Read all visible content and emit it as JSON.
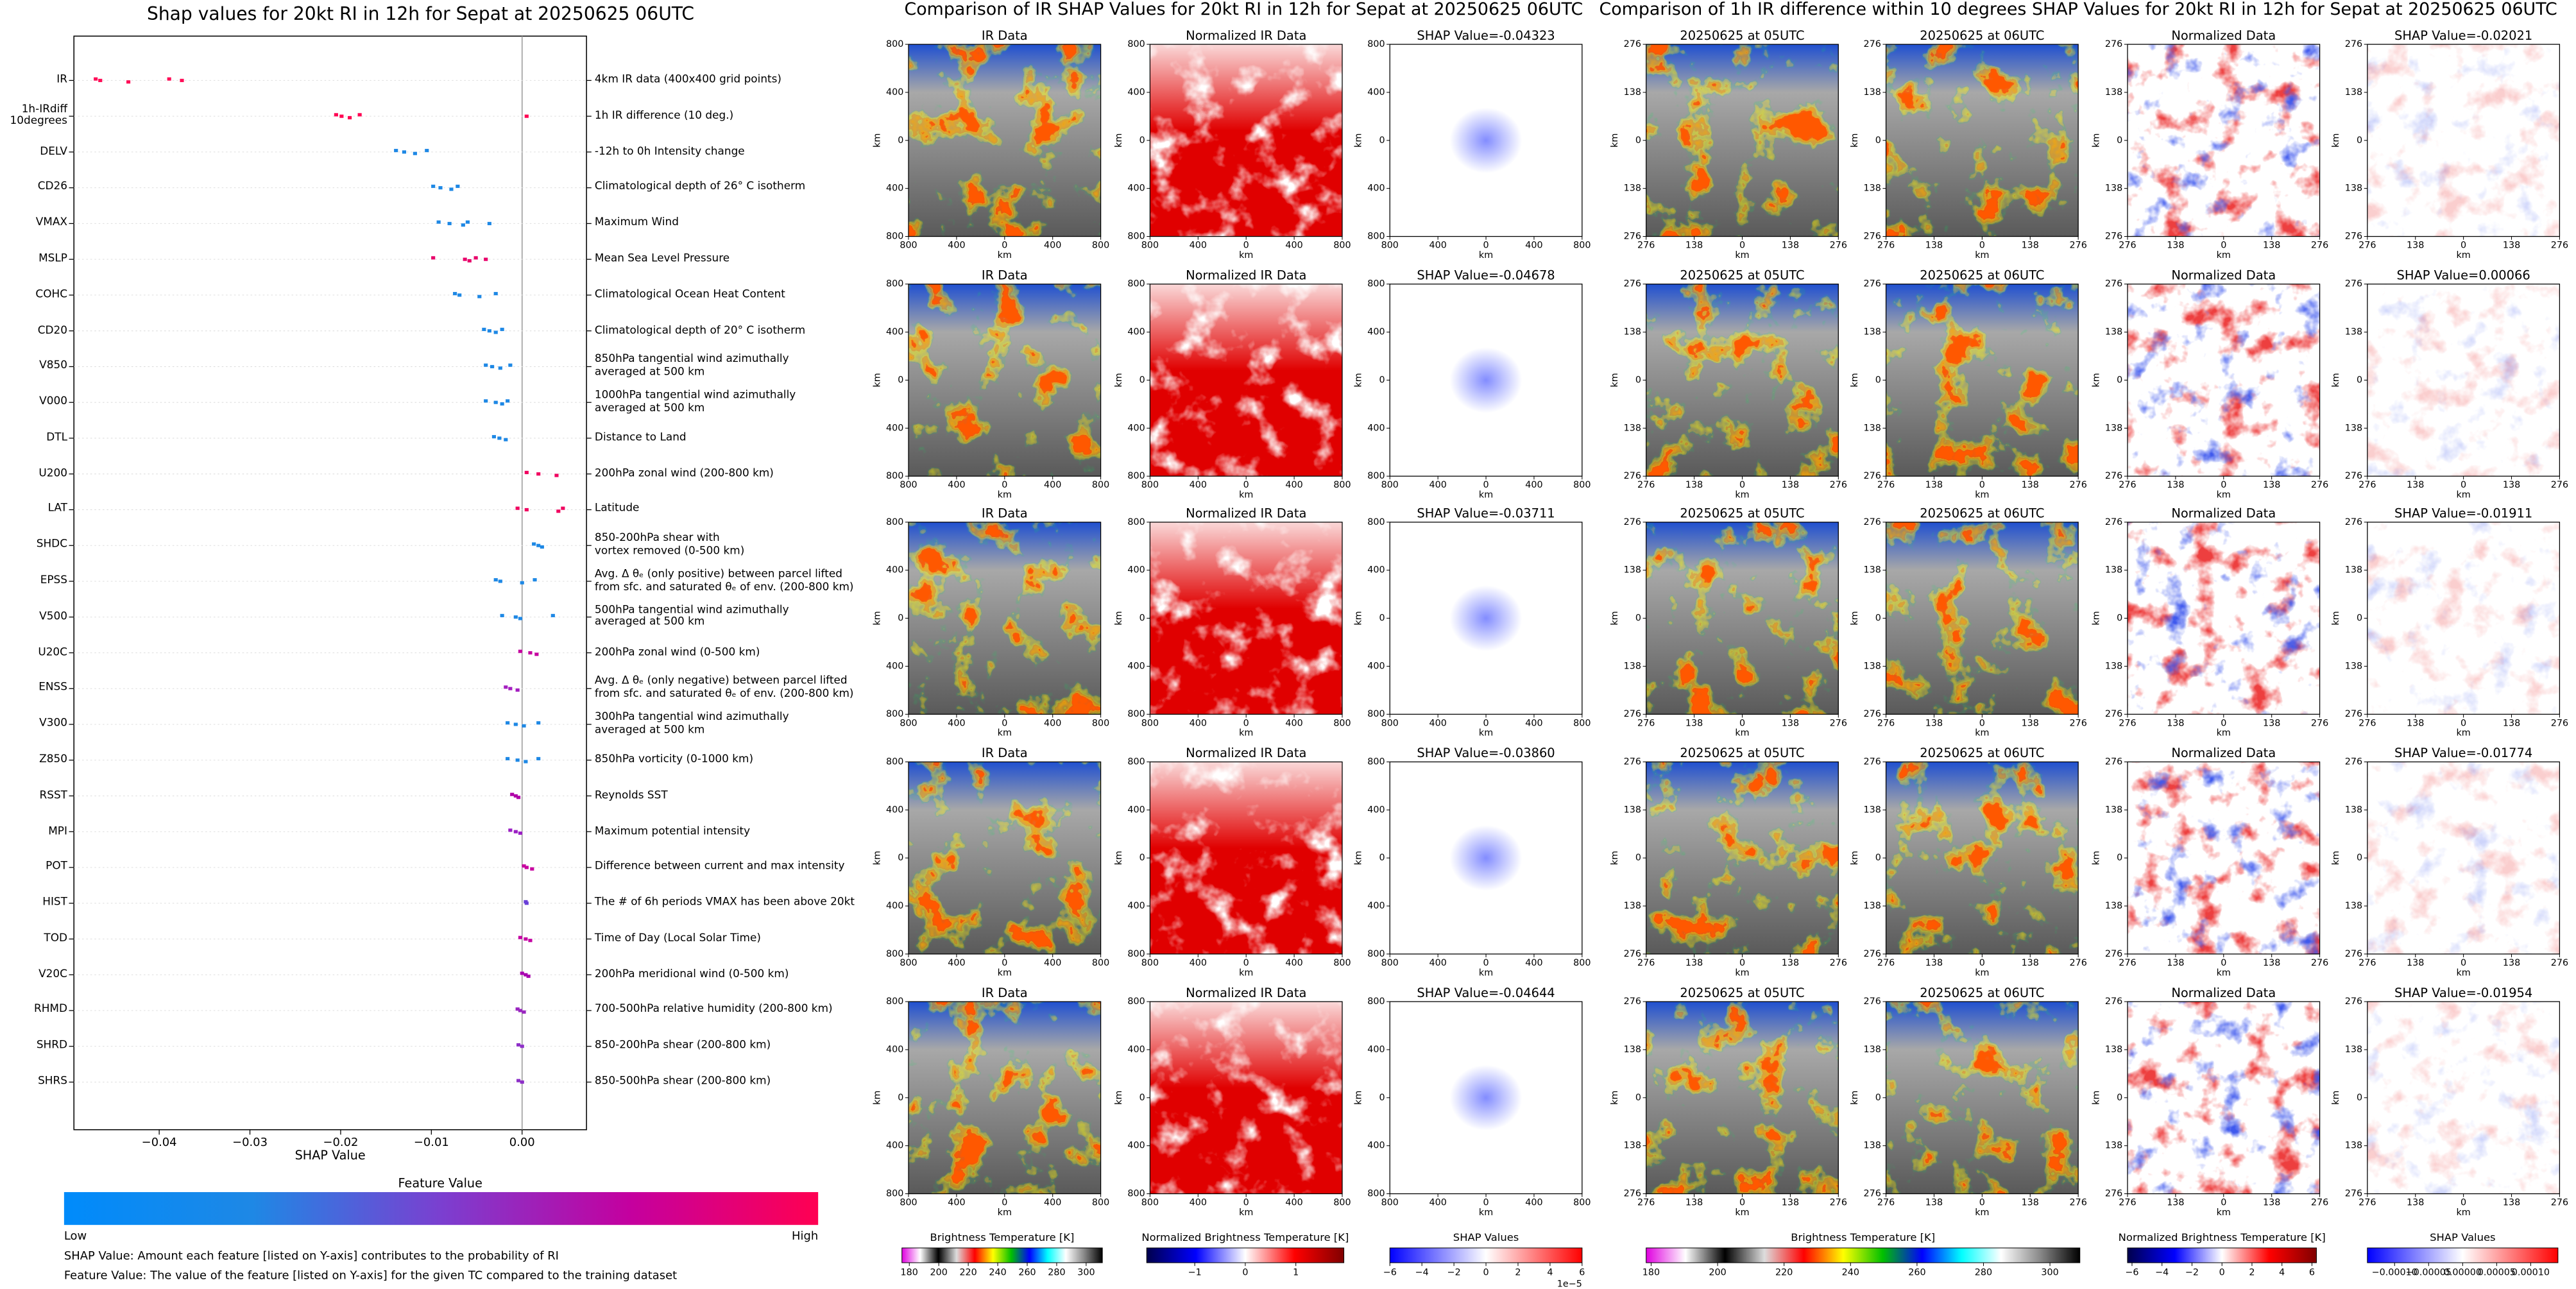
{
  "chart_data": {
    "type": "beeswarm",
    "title": "Shap values for 20kt RI in 12h for Sepat at 20250625 06UTC",
    "xlabel": "SHAP Value",
    "xlim": [
      -0.0494,
      0.0071
    ],
    "xticks": [
      {
        "value": -0.04,
        "label": "−0.04"
      },
      {
        "value": -0.03,
        "label": "−0.03"
      },
      {
        "value": -0.02,
        "label": "−0.02"
      },
      {
        "value": -0.01,
        "label": "−0.01"
      },
      {
        "value": 0,
        "label": "0.00"
      }
    ],
    "series": [
      {
        "name": "IR",
        "color": "#ff0d57",
        "values": [
          -0.047,
          -0.0465,
          -0.0434,
          -0.0389,
          -0.0375
        ]
      },
      {
        "name": "1h-IRdiff\n10degrees",
        "color": "#ff0052",
        "values": [
          -0.0205,
          -0.0199,
          -0.019,
          -0.0179,
          0.0005
        ]
      },
      {
        "name": "DELV",
        "color": "#1e88e5",
        "values": [
          -0.0139,
          -0.013,
          -0.0118,
          -0.0105
        ]
      },
      {
        "name": "CD26",
        "color": "#1e88e5",
        "values": [
          -0.0098,
          -0.009,
          -0.0078,
          -0.0071
        ]
      },
      {
        "name": "VMAX",
        "color": "#1e88e5",
        "values": [
          -0.0092,
          -0.008,
          -0.0065,
          -0.006,
          -0.0036
        ]
      },
      {
        "name": "MSLP",
        "color": "#e8006a",
        "values": [
          -0.0098,
          -0.0063,
          -0.0058,
          -0.0051,
          -0.004
        ]
      },
      {
        "name": "COHC",
        "color": "#1e88e5",
        "values": [
          -0.0074,
          -0.0069,
          -0.0047,
          -0.0029
        ]
      },
      {
        "name": "CD20",
        "color": "#1e88e5",
        "values": [
          -0.0042,
          -0.0036,
          -0.0029,
          -0.0022
        ]
      },
      {
        "name": "V850",
        "color": "#1e88e5",
        "values": [
          -0.004,
          -0.0033,
          -0.0024,
          -0.0013
        ]
      },
      {
        "name": "V000",
        "color": "#1e88e5",
        "values": [
          -0.004,
          -0.0029,
          -0.0022,
          -0.0016
        ]
      },
      {
        "name": "DTL",
        "color": "#1e88e5",
        "values": [
          -0.0031,
          -0.0025,
          -0.0018
        ]
      },
      {
        "name": "U200",
        "color": "#f0005f",
        "values": [
          0.0005,
          0.0018,
          0.0038
        ]
      },
      {
        "name": "LAT",
        "color": "#f0005f",
        "values": [
          -0.0005,
          0.0005,
          0.004,
          0.0045
        ]
      },
      {
        "name": "SHDC",
        "color": "#1e88e5",
        "values": [
          0.0013,
          0.0018,
          0.0022
        ]
      },
      {
        "name": "EPSS",
        "color": "#1e88e5",
        "values": [
          -0.0029,
          -0.0024,
          0,
          0.0014
        ]
      },
      {
        "name": "V500",
        "color": "#1e88e5",
        "values": [
          -0.0022,
          -0.0007,
          -0.0002,
          0.0034
        ]
      },
      {
        "name": "U20C",
        "color": "#c6009f",
        "values": [
          -0.0002,
          0.0009,
          0.0016
        ]
      },
      {
        "name": "ENSS",
        "color": "#a41fc0",
        "values": [
          -0.0018,
          -0.0013,
          -0.0005
        ]
      },
      {
        "name": "V300",
        "color": "#1e88e5",
        "values": [
          -0.0016,
          -0.0007,
          0.0002,
          0.0018
        ]
      },
      {
        "name": "Z850",
        "color": "#1e88e5",
        "values": [
          -0.0016,
          -0.0005,
          0.0004,
          0.0018
        ]
      },
      {
        "name": "RSST",
        "color": "#b000a8",
        "values": [
          -0.0011,
          -0.0007,
          -0.0004
        ]
      },
      {
        "name": "MPI",
        "color": "#9b1fc4",
        "values": [
          -0.0013,
          -0.0007,
          -0.0002
        ]
      },
      {
        "name": "POT",
        "color": "#c800a0",
        "values": [
          0.0002,
          0.0005,
          0.0011
        ]
      },
      {
        "name": "HIST",
        "color": "#6a40d8",
        "values": [
          0.0004,
          0.0005
        ]
      },
      {
        "name": "TOD",
        "color": "#c400a2",
        "values": [
          -0.0002,
          0.0004,
          0.0009
        ]
      },
      {
        "name": "V20C",
        "color": "#a800b0",
        "values": [
          0,
          0.0004,
          0.0007
        ]
      },
      {
        "name": "RHMD",
        "color": "#9a26c0",
        "values": [
          -0.0005,
          -0.0002,
          0.0002
        ]
      },
      {
        "name": "SHRD",
        "color": "#8e30c8",
        "values": [
          -0.0004,
          0
        ]
      },
      {
        "name": "SHRS",
        "color": "#8e30c8",
        "values": [
          -0.0004,
          0
        ]
      }
    ],
    "descriptions": [
      "4km IR data (400x400 grid points)",
      "1h IR difference (10 deg.)",
      "-12h to 0h Intensity change",
      "Climatological depth of 26° C isotherm",
      "Maximum Wind",
      "Mean Sea Level Pressure",
      "Climatological Ocean Heat Content",
      "Climatological depth of 20° C isotherm",
      "850hPa tangential wind azimuthally\naveraged at 500 km",
      "1000hPa tangential wind azimuthally\naveraged at 500 km",
      "Distance to Land",
      "200hPa zonal wind (200-800 km)",
      "Latitude",
      "850-200hPa shear with\nvortex removed (0-500 km)",
      "Avg. Δ θₑ (only positive) between parcel lifted\nfrom sfc. and saturated θₑ of env. (200-800 km)",
      "500hPa tangential wind azimuthally\naveraged at 500 km",
      "200hPa zonal wind (0-500 km)",
      "Avg. Δ θₑ (only negative) between parcel lifted\nfrom sfc. and saturated θₑ of env. (200-800 km)",
      "300hPa tangential wind azimuthally\naveraged at 500 km",
      "850hPa vorticity (0-1000 km)",
      "Reynolds SST",
      "Maximum potential intensity",
      "Difference between current and max intensity",
      "The # of 6h periods VMAX has been above 20kt",
      "Time of Day (Local Solar Time)",
      "200hPa meridional wind (0-500 km)",
      "700-500hPa relative humidity (200-800 km)",
      "850-200hPa shear (200-800 km)",
      "850-500hPa shear (200-800 km)"
    ],
    "colorbar": {
      "title": "Feature Value",
      "low": "Low",
      "high": "High",
      "colors": [
        "#008bfb",
        "#1e88e5",
        "#7b3fd0",
        "#c4009f",
        "#ff0052"
      ]
    },
    "notes": [
      "SHAP Value: Amount each feature [listed on Y-axis] contributes to the probability of RI",
      "Feature Value: The value of the feature [listed on Y-axis] for the given TC compared to the training dataset"
    ]
  },
  "ir_comparison": {
    "title": "Comparison of IR SHAP Values for 20kt RI in 12h for Sepat at 20250625 06UTC",
    "panel_titles": [
      [
        "IR Data",
        "Normalized IR Data",
        "SHAP Value=-0.04323"
      ],
      [
        "IR Data",
        "Normalized IR Data",
        "SHAP Value=-0.04678"
      ],
      [
        "IR Data",
        "Normalized IR Data",
        "SHAP Value=-0.03711"
      ],
      [
        "IR Data",
        "Normalized IR Data",
        "SHAP Value=-0.03860"
      ],
      [
        "IR Data",
        "Normalized IR Data",
        "SHAP Value=-0.04644"
      ]
    ],
    "tick_labels": [
      "800",
      "400",
      "0",
      "400",
      "800"
    ],
    "axis_label": "km",
    "colorbars": [
      {
        "label": "Brightness Temperature [K]",
        "range": [
          175,
          311
        ],
        "ticks": [
          180,
          200,
          220,
          240,
          260,
          280,
          300
        ],
        "colors": [
          "#e000e0",
          "#ffffff",
          "#000000",
          "#dddddd",
          "#ff0000",
          "#ffff00",
          "#00c000",
          "#0000ff",
          "#00ffff",
          "#ffffff",
          "#888888",
          "#000000"
        ]
      },
      {
        "label": "Normalized Brightness Temperature [K]",
        "range": [
          -1.95,
          1.95
        ],
        "ticks": [
          {
            "value": -1,
            "label": "−1"
          },
          0,
          1
        ],
        "colors": [
          "#00004c",
          "#0000ff",
          "#ffffff",
          "#ff0000",
          "#800000"
        ]
      },
      {
        "label": "SHAP Values",
        "range": [
          -6,
          6
        ],
        "ticks": [
          {
            "value": -6,
            "label": "−6"
          },
          {
            "value": -4,
            "label": "−4"
          },
          {
            "value": -2,
            "label": "−2"
          },
          0,
          2,
          4,
          6
        ],
        "offset": "1e−5",
        "colors": [
          "#0000ff",
          "#ffffff",
          "#ff0000"
        ]
      }
    ]
  },
  "irdiff_comparison": {
    "title": "Comparison of 1h IR difference within 10 degrees SHAP Values for 20kt RI in 12h for Sepat at 20250625 06UTC",
    "panel_titles": [
      [
        "20250625 at 05UTC",
        "20250625 at 06UTC",
        "Normalized Data",
        "SHAP Value=-0.02021"
      ],
      [
        "20250625 at 05UTC",
        "20250625 at 06UTC",
        "Normalized Data",
        "SHAP Value=0.00066"
      ],
      [
        "20250625 at 05UTC",
        "20250625 at 06UTC",
        "Normalized Data",
        "SHAP Value=-0.01911"
      ],
      [
        "20250625 at 05UTC",
        "20250625 at 06UTC",
        "Normalized Data",
        "SHAP Value=-0.01774"
      ],
      [
        "20250625 at 05UTC",
        "20250625 at 06UTC",
        "Normalized Data",
        "SHAP Value=-0.01954"
      ]
    ],
    "tick_labels": [
      "276",
      "138",
      "0",
      "138",
      "276"
    ],
    "axis_label": "km",
    "colorbars": [
      {
        "label": "Brightness Temperature [K]",
        "range": [
          178.5,
          309
        ],
        "ticks": [
          180,
          200,
          220,
          240,
          260,
          280,
          300
        ],
        "colors": [
          "#e000e0",
          "#ffffff",
          "#000000",
          "#dddddd",
          "#ff0000",
          "#ffff00",
          "#00c000",
          "#0000ff",
          "#00ffff",
          "#ffffff",
          "#888888",
          "#000000"
        ]
      },
      {
        "label": "Normalized Brightness Temperature [K]",
        "range": [
          -6.3,
          6.3
        ],
        "ticks": [
          {
            "value": -6,
            "label": "−6"
          },
          {
            "value": -4,
            "label": "−4"
          },
          {
            "value": -2,
            "label": "−2"
          },
          0,
          2,
          4,
          6
        ],
        "colors": [
          "#00004c",
          "#0000ff",
          "#ffffff",
          "#ff0000",
          "#800000"
        ]
      },
      {
        "label": "SHAP Values",
        "range": [
          -0.00014,
          0.00014
        ],
        "ticks": [
          {
            "value": -0.0001,
            "label": "−0.00010"
          },
          {
            "value": -5e-05,
            "label": "−0.00005"
          },
          {
            "value": 0,
            "label": "0.00000"
          },
          {
            "value": 5e-05,
            "label": "0.00005"
          },
          {
            "value": 0.0001,
            "label": "0.00010"
          }
        ],
        "colors": [
          "#0000ff",
          "#ffffff",
          "#ff0000"
        ]
      }
    ]
  }
}
